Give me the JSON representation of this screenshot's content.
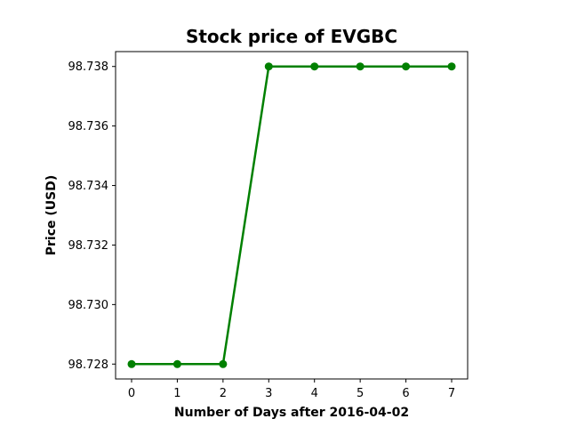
{
  "chart_data": {
    "type": "line",
    "title": "Stock price of EVGBC",
    "xlabel": "Number of Days after 2016-04-02",
    "ylabel": "Price (USD)",
    "x": [
      0,
      1,
      2,
      3,
      4,
      5,
      6,
      7
    ],
    "series": [
      {
        "values": [
          98.728,
          98.728,
          98.728,
          98.738,
          98.738,
          98.738,
          98.738,
          98.738
        ],
        "color": "#008000"
      }
    ],
    "xlim": [
      -0.35,
      7.35
    ],
    "ylim": [
      98.7275,
      98.7385
    ],
    "xticks": [
      "0",
      "1",
      "2",
      "3",
      "4",
      "5",
      "6",
      "7"
    ],
    "yticks": [
      "98.728",
      "98.730",
      "98.732",
      "98.734",
      "98.736",
      "98.738"
    ],
    "grid": false,
    "marker": "circle"
  }
}
